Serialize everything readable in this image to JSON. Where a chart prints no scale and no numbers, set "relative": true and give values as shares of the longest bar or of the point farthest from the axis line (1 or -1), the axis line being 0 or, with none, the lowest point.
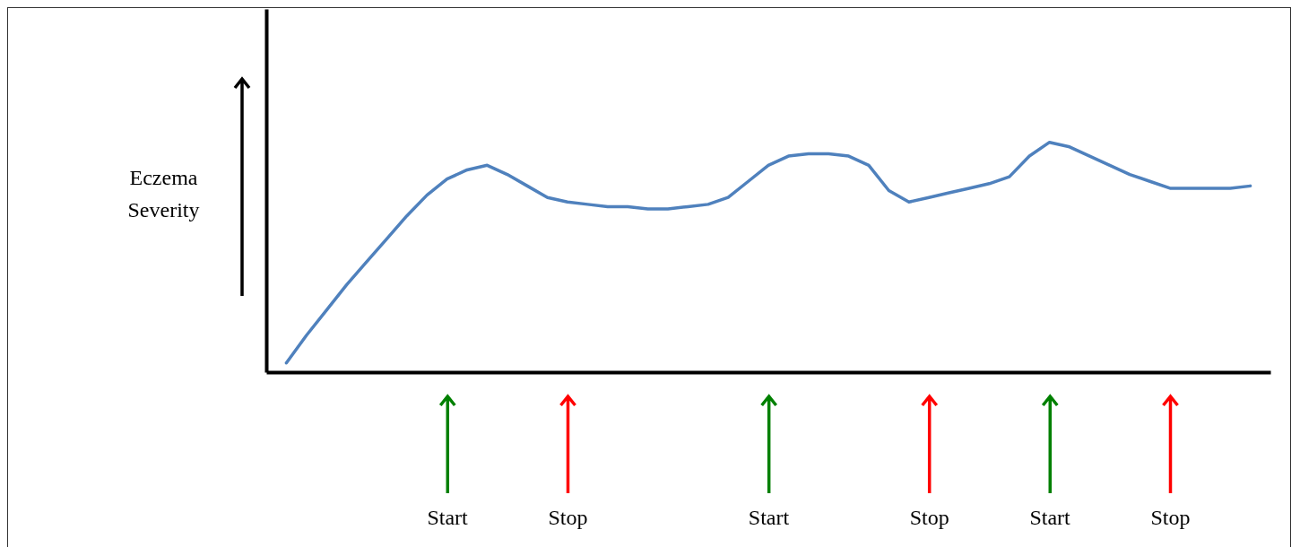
{
  "chart_data": {
    "type": "line",
    "relative": true,
    "ylabel": "Eczema Severity",
    "tick_labels": "x",
    "categories": [
      null,
      null,
      null,
      null,
      null,
      null,
      null,
      null,
      "Start",
      null,
      null,
      null,
      null,
      null,
      "Stop",
      null,
      null,
      null,
      null,
      null,
      null,
      null,
      null,
      null,
      "Start",
      null,
      null,
      null,
      null,
      null,
      null,
      null,
      "Stop",
      null,
      null,
      null,
      null,
      null,
      "Start",
      null,
      null,
      null,
      null,
      null,
      "Stop",
      null,
      null,
      null,
      null
    ],
    "series": [
      {
        "color": "#4f81bd",
        "values": [
          0.04,
          0.16,
          0.27,
          0.38,
          0.48,
          0.58,
          0.68,
          0.77,
          0.84,
          0.88,
          0.9,
          0.86,
          0.81,
          0.76,
          0.74,
          0.73,
          0.72,
          0.72,
          0.71,
          0.71,
          0.72,
          0.73,
          0.76,
          0.83,
          0.9,
          0.94,
          0.95,
          0.95,
          0.94,
          0.9,
          0.79,
          0.74,
          0.76,
          0.78,
          0.8,
          0.82,
          0.85,
          0.94,
          1.0,
          0.98,
          0.94,
          0.9,
          0.86,
          0.83,
          0.8,
          0.8,
          0.8,
          0.8,
          0.81
        ]
      }
    ]
  }
}
